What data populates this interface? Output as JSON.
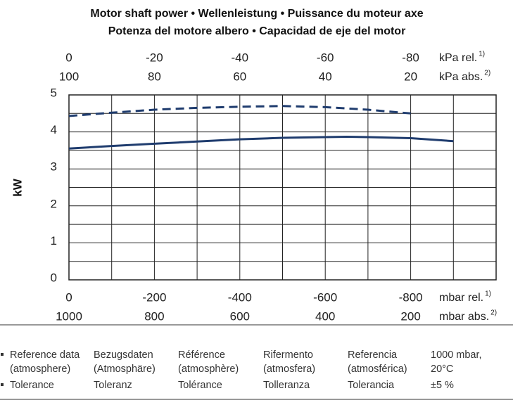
{
  "chart_data": {
    "type": "line",
    "title": [
      "Motor shaft power • Wellenleistung • Puissance du moteur axe",
      "Potenza del motore albero • Capacidad de eje del motor"
    ],
    "ylabel": "kW",
    "ylim": [
      0,
      5
    ],
    "yticks": [
      0,
      1,
      2,
      3,
      4,
      5
    ],
    "y_gridlines": [
      0,
      0.5,
      1,
      1.5,
      2,
      2.5,
      3,
      3.5,
      4,
      4.5,
      5
    ],
    "xlim": [
      0,
      -1000
    ],
    "xticks": [
      0,
      -200,
      -400,
      -600,
      -800
    ],
    "x_gridlines": [
      0,
      -100,
      -200,
      -300,
      -400,
      -500,
      -600,
      -700,
      -800,
      -900,
      -1000
    ],
    "xlabel": "mbar rel.",
    "xlabel_note": "1)",
    "secondary_x_axes": [
      {
        "position": "top",
        "label": "kPa rel.",
        "note": "1)",
        "lim": [
          0,
          -100
        ],
        "ticks": [
          0,
          -20,
          -40,
          -60,
          -80
        ]
      },
      {
        "position": "top",
        "label": "kPa abs.",
        "note": "2)",
        "lim": [
          100,
          0
        ],
        "ticks": [
          100,
          80,
          60,
          40,
          20
        ]
      },
      {
        "position": "bottom",
        "label": "mbar abs.",
        "note": "2)",
        "lim": [
          1000,
          0
        ],
        "ticks": [
          1000,
          800,
          600,
          400,
          200
        ]
      }
    ],
    "series": [
      {
        "color": "#1f3c6e",
        "style": "solid",
        "x": [
          0,
          -100,
          -200,
          -300,
          -400,
          -500,
          -600,
          -650,
          -700,
          -800,
          -900
        ],
        "values": [
          3.55,
          3.62,
          3.68,
          3.74,
          3.8,
          3.84,
          3.86,
          3.87,
          3.86,
          3.83,
          3.75
        ]
      },
      {
        "color": "#1f3c6e",
        "style": "dashed",
        "x": [
          0,
          -100,
          -200,
          -300,
          -400,
          -500,
          -600,
          -700,
          -800
        ],
        "values": [
          4.43,
          4.52,
          4.6,
          4.65,
          4.68,
          4.7,
          4.67,
          4.6,
          4.5
        ]
      }
    ]
  },
  "table": {
    "rows": [
      [
        [
          "Reference data",
          "(atmosphere)"
        ],
        [
          "Bezugsdaten",
          "(Atmosphäre)"
        ],
        [
          "Référence",
          "(atmosphère)"
        ],
        [
          "Rifermento",
          "(atmosfera)"
        ],
        [
          "Referencia",
          "(atmosférica)"
        ],
        [
          "1000 mbar,",
          "20°C"
        ]
      ],
      [
        [
          "Tolerance"
        ],
        [
          "Toleranz"
        ],
        [
          "Tolérance"
        ],
        [
          "Tolleranza"
        ],
        [
          "Tolerancia"
        ],
        [
          "±5 %"
        ]
      ]
    ]
  }
}
